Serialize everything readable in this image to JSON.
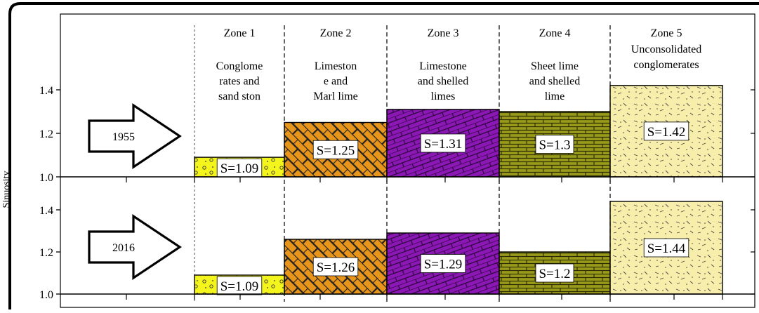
{
  "chart_data": {
    "type": "bar",
    "ylabel": "Sinuosity",
    "ylim": [
      1.0,
      1.5
    ],
    "yticks": [
      "1.0",
      "1.2",
      "1.4"
    ],
    "zones": [
      {
        "name": "Zone 1",
        "desc": [
          "Conglome",
          "rates and",
          "sand ston"
        ],
        "pattern": "conglomerate-yellow",
        "color": "#f5f51e"
      },
      {
        "name": "Zone 2",
        "desc": [
          "Limeston",
          "e and",
          "Marl lime"
        ],
        "pattern": "brick-diagonal",
        "color": "#e8951c"
      },
      {
        "name": "Zone 3",
        "desc": [
          "Limestone",
          "and shelled",
          "limes"
        ],
        "pattern": "brick-slanted",
        "color": "#8b17b5"
      },
      {
        "name": "Zone 4",
        "desc": [
          "Sheet lime",
          "and shelled",
          "lime"
        ],
        "pattern": "brick",
        "color": "#9a9a1a"
      },
      {
        "name": "Zone 5",
        "desc": [
          "Unconsolidated",
          "conglomerates"
        ],
        "pattern": "sand",
        "color": "#f6eeaa"
      }
    ],
    "panels": [
      {
        "year": "1955",
        "values": [
          1.09,
          1.25,
          1.31,
          1.3,
          1.42
        ],
        "labels": [
          "S=1.09",
          "S=1.25",
          "S=1.31",
          "S=1.3",
          "S=1.42"
        ]
      },
      {
        "year": "2016",
        "values": [
          1.09,
          1.26,
          1.29,
          1.2,
          1.44
        ],
        "labels": [
          "S=1.09",
          "S=1.26",
          "S=1.29",
          "S=1.2",
          "S=1.44"
        ]
      }
    ]
  }
}
